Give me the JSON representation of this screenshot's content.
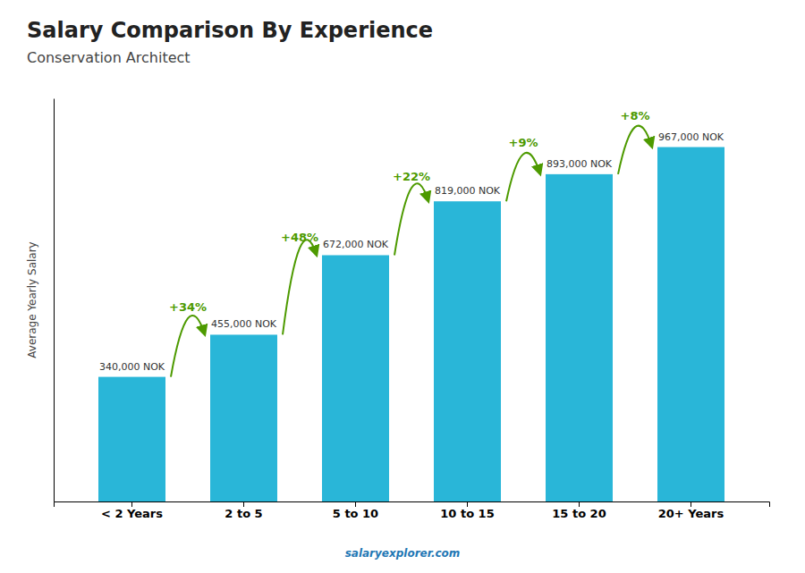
{
  "chart_data": {
    "type": "bar",
    "title": "Salary Comparison By Experience",
    "subtitle": "Conservation Architect",
    "categories": [
      "< 2 Years",
      "2 to 5",
      "5 to 10",
      "10 to 15",
      "15 to 20",
      "20+ Years"
    ],
    "values": [
      340000,
      455000,
      672000,
      819000,
      893000,
      967000
    ],
    "value_labels": [
      "340,000 NOK",
      "455,000 NOK",
      "672,000 NOK",
      "819,000 NOK",
      "893,000 NOK",
      "967,000 NOK"
    ],
    "data_labels": true,
    "annotations": [
      "+34%",
      "+48%",
      "+22%",
      "+9%",
      "+8%"
    ],
    "ylabel": "Average Yearly Salary",
    "footer": "salaryexplorer.com",
    "color": "#29b6d8",
    "ylim": [
      0,
      1100000
    ],
    "grid": false,
    "tick_labels": "x"
  }
}
